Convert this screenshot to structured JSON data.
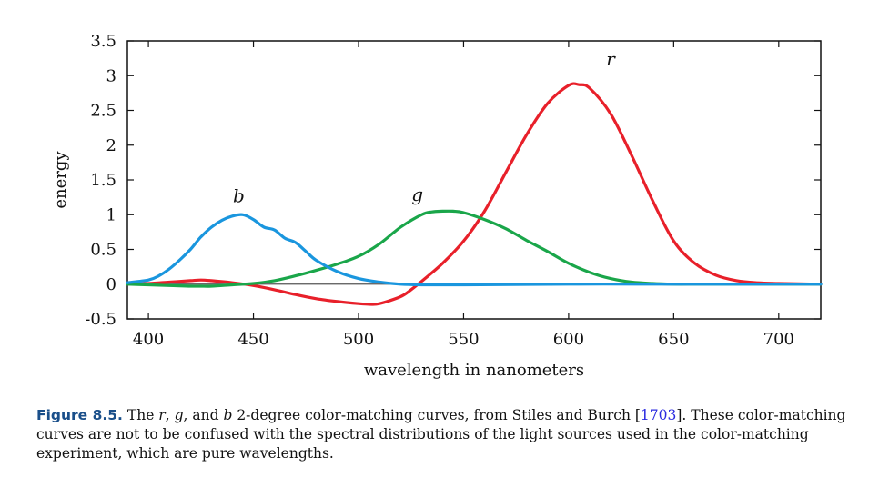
{
  "chart_data": {
    "type": "line",
    "xlabel": "wavelength in nanometers",
    "ylabel": "energy",
    "xlim": [
      390,
      720
    ],
    "ylim": [
      -0.5,
      3.5
    ],
    "x_ticks": [
      400,
      450,
      500,
      550,
      600,
      650,
      700
    ],
    "y_ticks": [
      -0.5,
      0,
      0.5,
      1,
      1.5,
      2,
      2.5,
      3,
      3.5
    ],
    "y_tick_labels": [
      "-0.5",
      "0",
      "0.5",
      "1",
      "1.5",
      "2",
      "2.5",
      "3",
      "3.5"
    ],
    "grid": false,
    "zero_line": true,
    "series": [
      {
        "name": "r",
        "color": "#e8202a",
        "x": [
          390,
          400,
          410,
          420,
          425,
          430,
          440,
          450,
          460,
          470,
          480,
          490,
          500,
          505,
          510,
          520,
          525,
          530,
          540,
          550,
          560,
          570,
          580,
          590,
          600,
          605,
          610,
          620,
          630,
          640,
          650,
          660,
          670,
          680,
          690,
          700,
          720
        ],
        "y": [
          0.0,
          0.01,
          0.03,
          0.05,
          0.06,
          0.05,
          0.02,
          -0.02,
          -0.08,
          -0.15,
          -0.21,
          -0.25,
          -0.28,
          -0.29,
          -0.28,
          -0.18,
          -0.08,
          0.04,
          0.3,
          0.62,
          1.05,
          1.6,
          2.15,
          2.6,
          2.86,
          2.87,
          2.82,
          2.45,
          1.85,
          1.2,
          0.62,
          0.3,
          0.13,
          0.05,
          0.02,
          0.01,
          0.0
        ]
      },
      {
        "name": "g",
        "color": "#1aa64a",
        "x": [
          390,
          400,
          410,
          420,
          425,
          430,
          440,
          450,
          460,
          470,
          480,
          490,
          500,
          510,
          520,
          530,
          535,
          540,
          545,
          550,
          560,
          570,
          580,
          590,
          600,
          610,
          620,
          630,
          640,
          650,
          660,
          670,
          680,
          700,
          720
        ],
        "y": [
          0.0,
          -0.01,
          -0.02,
          -0.03,
          -0.03,
          -0.03,
          -0.01,
          0.01,
          0.05,
          0.12,
          0.2,
          0.29,
          0.4,
          0.58,
          0.82,
          1.0,
          1.04,
          1.05,
          1.05,
          1.03,
          0.93,
          0.8,
          0.63,
          0.47,
          0.3,
          0.17,
          0.08,
          0.03,
          0.01,
          0.0,
          0.0,
          0.0,
          0.0,
          0.0,
          0.0
        ]
      },
      {
        "name": "b",
        "color": "#1a96de",
        "x": [
          390,
          400,
          405,
          410,
          415,
          420,
          425,
          430,
          435,
          440,
          445,
          450,
          455,
          460,
          465,
          470,
          475,
          480,
          490,
          500,
          510,
          520,
          530,
          540,
          550,
          600,
          650,
          700,
          720
        ],
        "y": [
          0.02,
          0.06,
          0.12,
          0.22,
          0.35,
          0.5,
          0.68,
          0.82,
          0.92,
          0.98,
          1.0,
          0.93,
          0.82,
          0.78,
          0.66,
          0.6,
          0.47,
          0.34,
          0.18,
          0.08,
          0.03,
          0.0,
          -0.01,
          -0.01,
          -0.01,
          0.0,
          0.0,
          0.0,
          0.0
        ]
      }
    ],
    "annotations": [
      {
        "text": "r",
        "x": 620,
        "y": 3.15
      },
      {
        "text": "g",
        "x": 528,
        "y": 1.2
      },
      {
        "text": "b",
        "x": 443,
        "y": 1.18
      }
    ]
  },
  "caption": {
    "label": "Figure 8.5.",
    "part1": "The ",
    "r": "r",
    "comma1": ", ",
    "g": "g",
    "and": ", and ",
    "b": "b",
    "part2": " 2-degree color-matching curves, from Stiles and Burch [",
    "citation": "1703",
    "part3": "].  These color-matching curves are not to be confused with the spectral distributions of the light sources used in the color-matching experiment, which are pure wavelengths."
  }
}
